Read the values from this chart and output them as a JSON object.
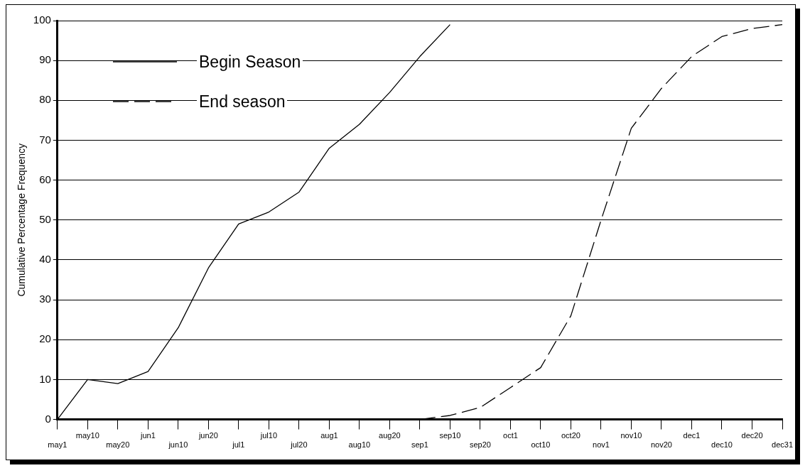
{
  "chart_data": {
    "type": "line",
    "ylabel": "Cumulative Percentage Frequency",
    "categories": [
      "may1",
      "may10",
      "may20",
      "jun1",
      "jun10",
      "jun20",
      "jul1",
      "jul10",
      "jul20",
      "aug1",
      "aug10",
      "aug20",
      "sep1",
      "sep10",
      "sep20",
      "oct1",
      "oct10",
      "oct20",
      "nov1",
      "nov10",
      "nov20",
      "dec1",
      "dec10",
      "dec20",
      "dec31"
    ],
    "series": [
      {
        "name": "Begin Season",
        "color": "#000000",
        "line_style": "solid",
        "values": [
          0,
          10,
          9,
          12,
          23,
          38,
          49,
          52,
          57,
          68,
          74,
          82,
          91,
          99,
          null,
          null,
          null,
          null,
          null,
          null,
          null,
          null,
          null,
          null,
          null
        ]
      },
      {
        "name": "End season",
        "color": "#000000",
        "line_style": "dashed",
        "values": [
          null,
          null,
          null,
          null,
          null,
          null,
          null,
          null,
          null,
          null,
          null,
          null,
          0,
          1,
          3,
          8,
          13,
          26,
          50,
          73,
          83,
          91,
          96,
          98,
          99
        ]
      }
    ],
    "ylim": [
      0,
      100
    ],
    "yticks": [
      0,
      10,
      20,
      30,
      40,
      50,
      60,
      70,
      80,
      90,
      100
    ],
    "grid": "y",
    "legend": "top left",
    "marker": "none"
  }
}
